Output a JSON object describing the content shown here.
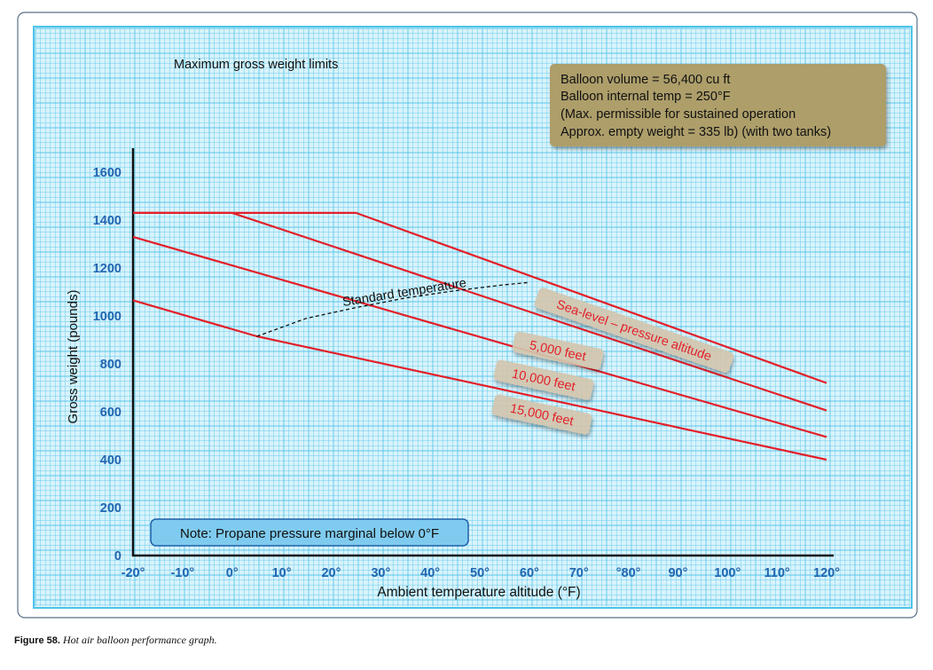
{
  "chart_data": {
    "type": "line",
    "title": "Maximum gross weight limits",
    "xlabel": "Ambient temperature altitude (°F)",
    "ylabel": "Gross  weight (pounds)",
    "xlim": [
      -20,
      120
    ],
    "ylim": [
      0,
      1700
    ],
    "x_ticks": [
      {
        "value": -20,
        "label": "-20°"
      },
      {
        "value": -10,
        "label": "-10°"
      },
      {
        "value": 0,
        "label": "0°"
      },
      {
        "value": 10,
        "label": "10°"
      },
      {
        "value": 20,
        "label": "20°"
      },
      {
        "value": 30,
        "label": "30°"
      },
      {
        "value": 40,
        "label": "40°"
      },
      {
        "value": 50,
        "label": "50°"
      },
      {
        "value": 60,
        "label": "60°"
      },
      {
        "value": 70,
        "label": "70°"
      },
      {
        "value": 80,
        "label": "°80°"
      },
      {
        "value": 90,
        "label": "90°"
      },
      {
        "value": 100,
        "label": "100°"
      },
      {
        "value": 110,
        "label": "110°"
      },
      {
        "value": 120,
        "label": "120°"
      }
    ],
    "y_ticks": [
      {
        "value": 0,
        "label": "0"
      },
      {
        "value": 200,
        "label": "200"
      },
      {
        "value": 400,
        "label": "400"
      },
      {
        "value": 600,
        "label": "600"
      },
      {
        "value": 800,
        "label": "800"
      },
      {
        "value": 1000,
        "label": "1000"
      },
      {
        "value": 1200,
        "label": "1200"
      },
      {
        "value": 1400,
        "label": "1400"
      },
      {
        "value": 1600,
        "label": "1600"
      }
    ],
    "grid": true,
    "series": [
      {
        "name": "Sea-level – pressure altitude",
        "color": "#e3202a",
        "points": [
          [
            -20,
            1430
          ],
          [
            25,
            1430
          ],
          [
            120,
            720
          ]
        ]
      },
      {
        "name": "5,000 feet",
        "color": "#e3202a",
        "points": [
          [
            -20,
            1430
          ],
          [
            0,
            1430
          ],
          [
            120,
            605
          ]
        ]
      },
      {
        "name": "10,000 feet",
        "color": "#e3202a",
        "points": [
          [
            -20,
            1330
          ],
          [
            120,
            495
          ]
        ]
      },
      {
        "name": "15,000 feet",
        "color": "#e3202a",
        "points": [
          [
            -20,
            1065
          ],
          [
            5,
            915
          ],
          [
            120,
            400
          ]
        ]
      }
    ],
    "reference_curve": {
      "name": "Standard temperature",
      "style": "dashed",
      "color": "#111111",
      "points": [
        [
          5,
          915
        ],
        [
          15,
          990
        ],
        [
          25,
          1035
        ],
        [
          35,
          1075
        ],
        [
          45,
          1105
        ],
        [
          55,
          1130
        ],
        [
          60,
          1140
        ]
      ]
    },
    "info_box": {
      "lines": [
        "Balloon volume = 56,400 cu ft",
        "Balloon internal temp = 250°F",
        "(Max. permissible for sustained operation",
        "Approx. empty weight = 335 lb) (with two tanks)"
      ],
      "color": "#ad9e6a"
    },
    "note": {
      "text": "Note: Propane pressure marginal below 0°F",
      "color": "#7fcbef"
    },
    "grid_color": "#4fc3ea",
    "background": "#d9f3fb"
  },
  "caption": {
    "figure": "Figure 58.",
    "description": "Hot air balloon performance graph."
  }
}
